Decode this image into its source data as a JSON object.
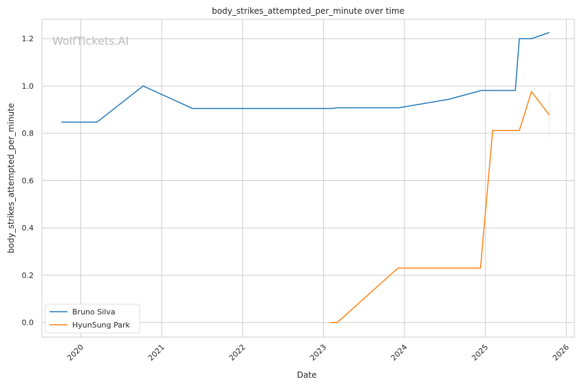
{
  "chart_data": {
    "type": "line",
    "title": "body_strikes_attempted_per_minute over time",
    "xlabel": "Date",
    "ylabel": "body_strikes_attempted_per_minute",
    "watermark": "WolfTickets.AI",
    "xlim": [
      2019.52,
      2026.1
    ],
    "ylim": [
      -0.062,
      1.282
    ],
    "xticks": [
      2020,
      2021,
      2022,
      2023,
      2024,
      2025,
      2026
    ],
    "xtick_labels": [
      "2020",
      "2021",
      "2022",
      "2023",
      "2024",
      "2025",
      "2026"
    ],
    "yticks": [
      0.0,
      0.2,
      0.4,
      0.6,
      0.8,
      1.0,
      1.2
    ],
    "ytick_labels": [
      "0.0",
      "0.2",
      "0.4",
      "0.6",
      "0.8",
      "1.0",
      "1.2"
    ],
    "grid": true,
    "legend_position": "lower-left",
    "series": [
      {
        "name": "Bruno Silva",
        "color": "#1f77b4",
        "x": [
          2019.76,
          2020.2,
          2020.77,
          2021.38,
          2023.1,
          2023.17,
          2023.93,
          2024.54,
          2024.95,
          2025.37,
          2025.42,
          2025.57,
          2025.79
        ],
        "y": [
          0.847,
          0.847,
          1.0,
          0.905,
          0.905,
          0.908,
          0.908,
          0.943,
          0.981,
          0.981,
          1.2,
          1.2,
          1.226
        ]
      },
      {
        "name": "HyunSung Park",
        "color": "#ff7f0e",
        "x": [
          2023.08,
          2023.17,
          2023.92,
          2024.94,
          2025.09,
          2025.42,
          2025.57,
          2025.79
        ],
        "y": [
          0.0,
          0.0,
          0.23,
          0.23,
          0.812,
          0.812,
          0.976,
          0.877
        ],
        "band_last": [
          0.78,
          0.975
        ]
      }
    ]
  }
}
